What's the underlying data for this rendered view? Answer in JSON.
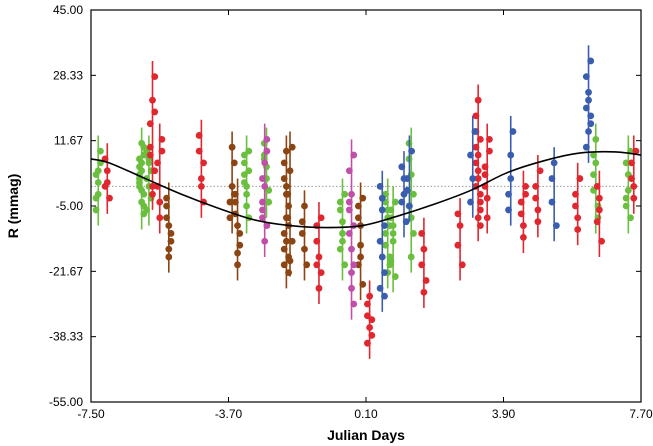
{
  "chart_data": {
    "type": "scatter",
    "xlabel": "Julian Days",
    "ylabel": "R (mmag)",
    "xlim": [
      -7.5,
      7.7
    ],
    "ylim": [
      -55.0,
      45.0
    ],
    "y_axis_inverted": false,
    "x_ticks": [
      "-7.50",
      "-3.70",
      "0.10",
      "3.90",
      "7.70"
    ],
    "y_ticks": [
      "45.00",
      "28.33",
      "11.67",
      "-5.00",
      "-21.67",
      "-38.33",
      "-55.00"
    ],
    "x_tick_values": [
      -7.5,
      -3.7,
      0.1,
      3.9,
      7.7
    ],
    "y_tick_values": [
      45.0,
      28.33,
      11.67,
      -5.0,
      -21.67,
      -38.33,
      -55.0
    ],
    "grid": false,
    "reference_line": {
      "y": 0.0,
      "style": "dotted",
      "color": "#9a9a9a"
    },
    "fit_curve": {
      "color": "#000000",
      "points": [
        [
          -7.5,
          7.0
        ],
        [
          -7.0,
          6.0
        ],
        [
          -6.0,
          2.0
        ],
        [
          -5.0,
          -2.0
        ],
        [
          -4.0,
          -5.5
        ],
        [
          -3.0,
          -8.5
        ],
        [
          -2.0,
          -10.0
        ],
        [
          -1.0,
          -10.5
        ],
        [
          0.0,
          -10.0
        ],
        [
          1.0,
          -7.5
        ],
        [
          2.0,
          -4.5
        ],
        [
          3.0,
          -1.0
        ],
        [
          4.0,
          3.5
        ],
        [
          5.0,
          6.5
        ],
        [
          6.0,
          8.5
        ],
        [
          7.0,
          8.8
        ],
        [
          7.7,
          8.0
        ]
      ]
    },
    "series": [
      {
        "color": "#6bbf3f",
        "groups": [
          {
            "x": -7.3,
            "y": [
              3,
              -2,
              6,
              -6,
              1,
              9,
              -3,
              4
            ]
          },
          {
            "x": -6.1,
            "y": [
              5,
              -1,
              8,
              2,
              -4,
              10,
              0,
              6,
              -7,
              3,
              11,
              -2,
              7,
              4,
              -5,
              1
            ]
          },
          {
            "x": -5.9,
            "y": [
              2,
              6,
              -3,
              9,
              0,
              4,
              -6,
              7
            ]
          },
          {
            "x": -3.2,
            "y": [
              6,
              -2,
              9,
              1,
              -5,
              4,
              8,
              0,
              -8,
              3
            ]
          },
          {
            "x": -2.65,
            "y": [
              11,
              5,
              -1,
              8,
              2,
              -4,
              7
            ]
          },
          {
            "x": -0.55,
            "y": [
              -6,
              -12,
              -2,
              -16,
              -9,
              -20,
              -4,
              -14
            ]
          },
          {
            "x": 0.7,
            "y": [
              -12,
              -8,
              -18,
              -4,
              -22,
              -10,
              -15,
              -6,
              -20,
              -2
            ]
          },
          {
            "x": 0.85,
            "y": [
              -8,
              -14,
              -4,
              -19,
              -10,
              -23,
              -6,
              -12
            ]
          },
          {
            "x": 1.35,
            "y": [
              -5,
              3,
              -12,
              7,
              -18,
              -2,
              11,
              -8
            ]
          },
          {
            "x": 6.45,
            "y": [
              -1,
              6,
              -8,
              3,
              12,
              -5,
              8
            ]
          },
          {
            "x": 7.35,
            "y": [
              -3,
              3,
              -8,
              6,
              -1,
              9,
              -5
            ]
          }
        ]
      },
      {
        "color": "#e0262f",
        "groups": [
          {
            "x": -7.05,
            "y": [
              0,
              4,
              -3,
              7,
              1
            ]
          },
          {
            "x": -5.8,
            "y": [
              10,
              22,
              4,
              16,
              -2,
              28,
              8,
              0,
              19
            ]
          },
          {
            "x": -5.6,
            "y": [
              6,
              -4,
              12,
              0,
              -8,
              9
            ]
          },
          {
            "x": -4.45,
            "y": [
              9,
              2,
              -4,
              13,
              0,
              6
            ]
          },
          {
            "x": -1.2,
            "y": [
              -10,
              -18,
              -22,
              -14,
              -26,
              -8,
              -20
            ]
          },
          {
            "x": 0.2,
            "y": [
              -30,
              -36,
              -34,
              -40,
              -28,
              -38,
              -33
            ]
          },
          {
            "x": 1.7,
            "y": [
              -20,
              -16,
              -24,
              -12,
              -27
            ]
          },
          {
            "x": 2.7,
            "y": [
              -15,
              -10,
              -20,
              -7
            ]
          },
          {
            "x": 3.2,
            "y": [
              0,
              8,
              -6,
              14,
              4,
              -10,
              18,
              2,
              -4,
              10,
              22,
              -2,
              6,
              -8,
              12
            ]
          },
          {
            "x": 3.45,
            "y": [
              5,
              -3,
              12,
              0,
              -8,
              9,
              3
            ]
          },
          {
            "x": 4.45,
            "y": [
              -4,
              -10,
              0,
              -7,
              -13,
              -2
            ]
          },
          {
            "x": 4.85,
            "y": [
              0,
              -6,
              4,
              -3,
              -9
            ]
          },
          {
            "x": 5.95,
            "y": [
              -2,
              -8,
              2,
              -5,
              -11
            ]
          },
          {
            "x": 6.55,
            "y": [
              -9,
              -3,
              -14,
              0,
              -6
            ]
          },
          {
            "x": 7.5,
            "y": [
              6,
              0,
              9,
              2,
              -3
            ]
          }
        ]
      },
      {
        "color": "#8b4513",
        "groups": [
          {
            "x": -5.35,
            "y": [
              -5,
              -10,
              -14,
              -8,
              -18,
              -12,
              -3,
              -16
            ]
          },
          {
            "x": -3.6,
            "y": [
              -8,
              0,
              6,
              -4,
              10,
              -2
            ]
          },
          {
            "x": -3.45,
            "y": [
              -4,
              -10,
              -15,
              -7,
              -20,
              -12,
              -2,
              -17
            ]
          },
          {
            "x": -2.1,
            "y": [
              -12,
              -2,
              -18,
              6,
              -8,
              -22,
              2,
              -14,
              -5,
              -20,
              9,
              -10,
              -16,
              0
            ]
          },
          {
            "x": -2.0,
            "y": [
              -8,
              4,
              -14,
              -2,
              -19,
              10
            ]
          },
          {
            "x": -1.6,
            "y": [
              -12,
              -5,
              -20,
              -9,
              -16
            ]
          },
          {
            "x": -0.05,
            "y": [
              -8,
              -15,
              -3,
              -20,
              -10,
              -25,
              -5,
              -18
            ]
          }
        ]
      },
      {
        "color": "#bf4fa8",
        "groups": [
          {
            "x": -2.7,
            "y": [
              -4,
              6,
              -10,
              2,
              -14,
              9,
              -6,
              0,
              12,
              -8
            ]
          },
          {
            "x": -0.3,
            "y": [
              -12,
              -2,
              -20,
              -6,
              -26,
              -10,
              4,
              -16,
              -30,
              -4,
              -22,
              8
            ]
          }
        ]
      },
      {
        "color": "#3b5db0",
        "groups": [
          {
            "x": 0.55,
            "y": [
              -14,
              -6,
              -22,
              0,
              -18,
              -10,
              -26,
              -3,
              -28
            ]
          },
          {
            "x": 1.15,
            "y": [
              -4,
              2,
              -9,
              5,
              -2
            ]
          },
          {
            "x": 1.3,
            "y": [
              2,
              -5,
              9,
              -1
            ]
          },
          {
            "x": 3.05,
            "y": [
              8,
              2,
              14,
              -4
            ]
          },
          {
            "x": 4.1,
            "y": [
              -6,
              2,
              14,
              -2,
              8
            ]
          },
          {
            "x": 5.3,
            "y": [
              -4,
              6,
              -10,
              2
            ]
          },
          {
            "x": 6.25,
            "y": [
              10,
              22,
              18,
              28,
              14,
              32,
              20,
              24,
              16
            ]
          }
        ]
      }
    ]
  }
}
